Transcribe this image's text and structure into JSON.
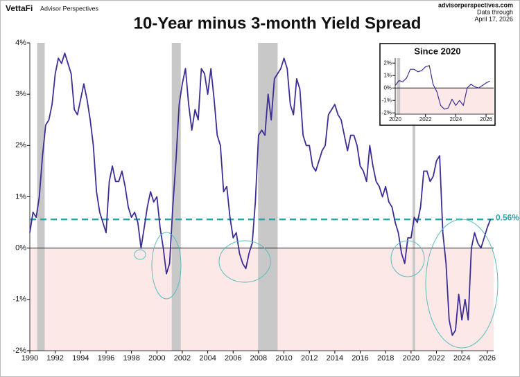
{
  "header": {
    "brand": "VettaFi",
    "brand_sub": "Advisor Perspectives",
    "site": "advisorperspectives.com",
    "data_through": "Data through",
    "date": "April 17, 2026"
  },
  "chart_data": [
    {
      "type": "line",
      "title": "10-Year minus 3-month Yield Spread",
      "color": "#3b2d96",
      "x": [
        1990,
        1990.25,
        1990.5,
        1990.75,
        1991,
        1991.25,
        1991.5,
        1991.75,
        1992,
        1992.25,
        1992.5,
        1992.75,
        1993,
        1993.25,
        1993.5,
        1993.75,
        1994,
        1994.25,
        1994.5,
        1994.75,
        1995,
        1995.25,
        1995.5,
        1995.75,
        1996,
        1996.25,
        1996.5,
        1996.75,
        1997,
        1997.25,
        1997.5,
        1997.75,
        1998,
        1998.25,
        1998.5,
        1998.75,
        1999,
        1999.25,
        1999.5,
        1999.75,
        2000,
        2000.25,
        2000.5,
        2000.75,
        2001,
        2001.25,
        2001.5,
        2001.75,
        2002,
        2002.25,
        2002.5,
        2002.75,
        2003,
        2003.25,
        2003.5,
        2003.75,
        2004,
        2004.25,
        2004.5,
        2004.75,
        2005,
        2005.25,
        2005.5,
        2005.75,
        2006,
        2006.25,
        2006.5,
        2006.75,
        2007,
        2007.25,
        2007.5,
        2007.75,
        2008,
        2008.25,
        2008.5,
        2008.75,
        2009,
        2009.25,
        2009.5,
        2009.75,
        2010,
        2010.25,
        2010.5,
        2010.75,
        2011,
        2011.25,
        2011.5,
        2011.75,
        2012,
        2012.25,
        2012.5,
        2012.75,
        2013,
        2013.25,
        2013.5,
        2013.75,
        2014,
        2014.25,
        2014.5,
        2014.75,
        2015,
        2015.25,
        2015.5,
        2015.75,
        2016,
        2016.25,
        2016.5,
        2016.75,
        2017,
        2017.25,
        2017.5,
        2017.75,
        2018,
        2018.25,
        2018.5,
        2018.75,
        2019,
        2019.25,
        2019.5,
        2019.75,
        2020,
        2020.25,
        2020.5,
        2020.75,
        2021,
        2021.25,
        2021.5,
        2021.75,
        2022,
        2022.25,
        2022.5,
        2022.75,
        2023,
        2023.25,
        2023.5,
        2023.75,
        2024,
        2024.25,
        2024.5,
        2024.75,
        2025,
        2025.25,
        2025.5,
        2025.75,
        2026,
        2026.25
      ],
      "values": [
        0.3,
        0.7,
        0.6,
        1.0,
        1.8,
        2.4,
        2.5,
        2.8,
        3.4,
        3.7,
        3.6,
        3.8,
        3.6,
        3.4,
        2.7,
        2.6,
        2.9,
        3.2,
        2.9,
        2.5,
        2.0,
        1.1,
        0.7,
        0.5,
        0.3,
        1.3,
        1.6,
        1.3,
        1.3,
        1.5,
        1.2,
        0.8,
        0.6,
        0.7,
        0.5,
        0.0,
        0.4,
        0.8,
        1.1,
        0.9,
        1.0,
        0.4,
        0.0,
        -0.5,
        -0.3,
        0.8,
        1.7,
        2.8,
        3.2,
        3.5,
        2.8,
        2.3,
        2.7,
        2.5,
        3.5,
        3.4,
        3.0,
        3.5,
        2.9,
        2.2,
        2.0,
        1.1,
        1.2,
        0.6,
        0.2,
        0.3,
        -0.1,
        -0.3,
        -0.4,
        -0.1,
        0.1,
        0.9,
        2.2,
        2.3,
        2.2,
        3.0,
        2.5,
        3.3,
        3.4,
        3.5,
        3.7,
        3.5,
        2.8,
        2.6,
        3.3,
        3.1,
        2.2,
        2.0,
        2.0,
        1.6,
        1.5,
        1.7,
        1.9,
        2.0,
        2.6,
        2.7,
        2.8,
        2.6,
        2.5,
        2.2,
        1.9,
        2.2,
        2.2,
        2.0,
        1.6,
        1.5,
        1.3,
        2.0,
        1.6,
        1.3,
        1.2,
        1.0,
        1.2,
        0.9,
        0.8,
        0.5,
        0.3,
        -0.1,
        -0.3,
        0.2,
        0.2,
        0.6,
        0.5,
        0.8,
        1.5,
        1.5,
        1.3,
        1.4,
        1.7,
        1.8,
        0.3,
        -0.3,
        -1.4,
        -1.7,
        -1.6,
        -0.9,
        -1.4,
        -1.0,
        -1.4,
        0.0,
        0.3,
        0.1,
        0.0,
        0.2,
        0.4,
        0.56
      ],
      "xlim": [
        1990,
        2026.5
      ],
      "xticks": [
        1990,
        1992,
        1994,
        1996,
        1998,
        2000,
        2002,
        2004,
        2006,
        2008,
        2010,
        2012,
        2014,
        2016,
        2018,
        2020,
        2022,
        2024,
        2026
      ],
      "ylim": [
        -2,
        4
      ],
      "yticks": [
        {
          "value": 4,
          "label": "4%"
        },
        {
          "value": 3,
          "label": "3%"
        },
        {
          "value": 2,
          "label": "2%"
        },
        {
          "value": 1,
          "label": "1%"
        },
        {
          "value": 0,
          "label": "0%"
        },
        {
          "value": -1,
          "label": "-1%"
        },
        {
          "value": -2,
          "label": "-2%"
        }
      ],
      "reference": {
        "value": 0.56,
        "value_label": "0.56%",
        "color": "#2aa5a5"
      },
      "recessions": [
        [
          1990.58,
          1991.17
        ],
        [
          2001.17,
          2001.88
        ],
        [
          2007.96,
          2009.5
        ],
        [
          2020.12,
          2020.33
        ]
      ],
      "recession_color": "#c8c8c8",
      "negative_color": "#fde8e8"
    },
    {
      "type": "line",
      "title": "Since 2020",
      "color": "#3b2d96",
      "x": [
        2020,
        2020.25,
        2020.5,
        2020.75,
        2021,
        2021.25,
        2021.5,
        2021.75,
        2022,
        2022.25,
        2022.5,
        2022.75,
        2023,
        2023.25,
        2023.5,
        2023.75,
        2024,
        2024.25,
        2024.5,
        2024.75,
        2025,
        2025.25,
        2025.5,
        2025.75,
        2026,
        2026.25
      ],
      "values": [
        0.2,
        0.6,
        0.5,
        0.8,
        1.5,
        1.5,
        1.3,
        1.4,
        1.7,
        1.8,
        0.3,
        -0.3,
        -1.4,
        -1.7,
        -1.6,
        -0.9,
        -1.4,
        -1.0,
        -1.4,
        0.0,
        0.3,
        0.1,
        0.0,
        0.2,
        0.4,
        0.56
      ],
      "xlim": [
        2020,
        2026.5
      ],
      "xticks": [
        2020,
        2022,
        2024,
        2026
      ],
      "ylim": [
        -2.1,
        2.4
      ],
      "yticks": [
        {
          "value": 2,
          "label": "2%"
        },
        {
          "value": 1,
          "label": "1%"
        },
        {
          "value": 0,
          "label": "0%"
        },
        {
          "value": -1,
          "label": "-1%"
        },
        {
          "value": -2,
          "label": "-2%"
        }
      ],
      "recessions": [
        [
          2020.12,
          2020.33
        ]
      ],
      "recession_color": "#c8c8c8",
      "negative_color": "#fde8e8"
    }
  ]
}
